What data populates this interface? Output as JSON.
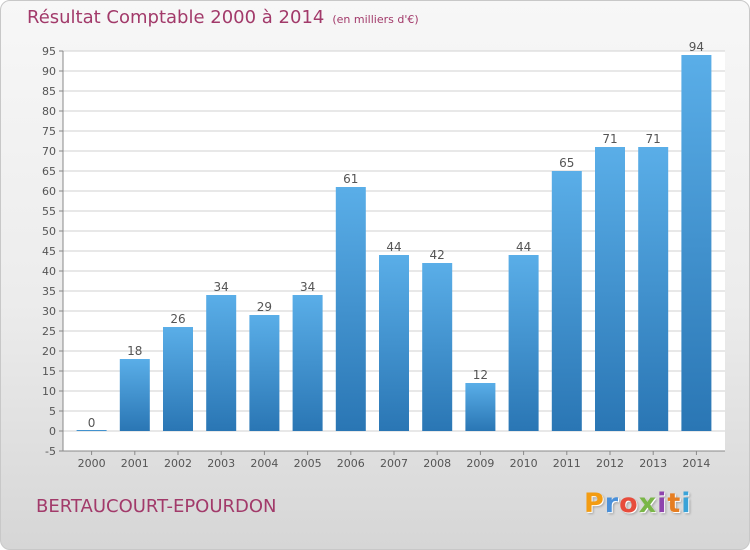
{
  "header": {
    "title": "Résultat Comptable 2000 à 2014",
    "subtitle": "(en milliers d'€)"
  },
  "footer": {
    "commune": "BERTAUCOURT-EPOURDON",
    "brand": "Proxiti",
    "brand_colors": [
      "#f39c12",
      "#4a90d9",
      "#e74c3c",
      "#7ab648",
      "#8e44ad",
      "#e67e22",
      "#3aa3d8"
    ]
  },
  "colors": {
    "bar_top": "#5aaee8",
    "bar_bottom": "#2a76b4",
    "grid": "#d2d2d2",
    "text": "#555555",
    "title": "#a23a6a"
  },
  "chart_data": {
    "type": "bar",
    "categories": [
      "2000",
      "2001",
      "2002",
      "2003",
      "2004",
      "2005",
      "2006",
      "2007",
      "2008",
      "2009",
      "2010",
      "2011",
      "2012",
      "2013",
      "2014"
    ],
    "values": [
      0,
      18,
      26,
      34,
      29,
      34,
      61,
      44,
      42,
      12,
      44,
      65,
      71,
      71,
      94
    ],
    "data_labels": [
      "0",
      "18",
      "26",
      "34",
      "29",
      "34",
      "61",
      "44",
      "42",
      "12",
      "44",
      "65",
      "71",
      "71",
      "94"
    ],
    "title": "Résultat Comptable 2000 à 2014",
    "subtitle": "(en milliers d'€)",
    "xlabel": "",
    "ylabel": "",
    "ylim": [
      -5,
      95
    ],
    "yticks": [
      -5,
      0,
      5,
      10,
      15,
      20,
      25,
      30,
      35,
      40,
      45,
      50,
      55,
      60,
      65,
      70,
      75,
      80,
      85,
      90,
      95
    ],
    "grid": true,
    "legend": "none"
  }
}
